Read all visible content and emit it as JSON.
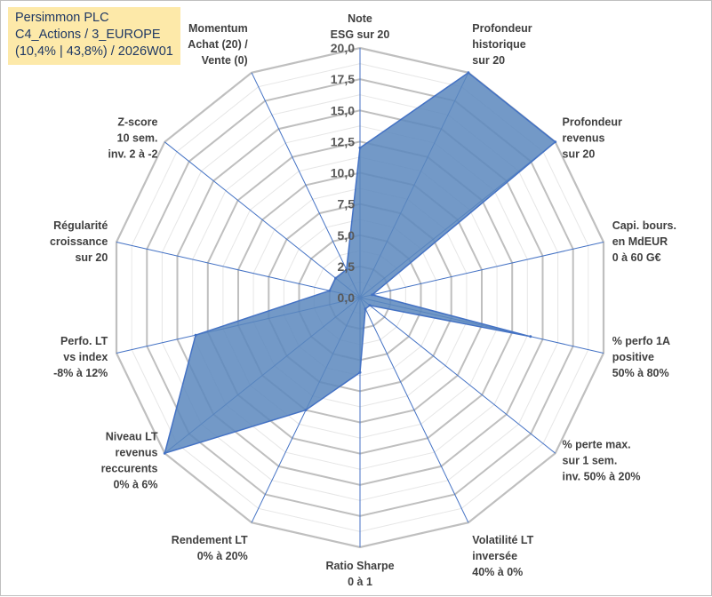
{
  "header": {
    "line1": "Persimmon PLC",
    "line2": "C4_Actions / 3_EUROPE",
    "line3": "(10,4% | 43,8%) / 2026W01"
  },
  "colors": {
    "fill": "#5b87bd",
    "stroke": "#4472c4",
    "grid": "#bfbfbf",
    "gridMinor": "#e6e6e6",
    "spoke": "#4472c4",
    "titleBg": "#fde9a9"
  },
  "chart_data": {
    "type": "radar",
    "title": "Persimmon PLC",
    "rmin": 0,
    "rmax": 20,
    "tick_step": 2.5,
    "tick_labels": [
      "0,0",
      "2,5",
      "5,0",
      "7,5",
      "10,0",
      "12,5",
      "15,0",
      "17,5",
      "20,0"
    ],
    "axes": [
      {
        "lines": [
          "Note",
          "ESG sur 20"
        ]
      },
      {
        "lines": [
          "Profondeur",
          "historique",
          "sur 20"
        ]
      },
      {
        "lines": [
          "Profondeur",
          "revenus",
          "sur 20"
        ]
      },
      {
        "lines": [
          "Capi. bours.",
          "en MdEUR",
          "0 à 60 G€"
        ]
      },
      {
        "lines": [
          "% perfo 1A",
          "positive",
          "50% à 80%"
        ]
      },
      {
        "lines": [
          "% perte max.",
          "sur 1 sem.",
          "inv. 50% à 20%"
        ]
      },
      {
        "lines": [
          "Volatilité LT",
          "inversée",
          "40% à 0%"
        ]
      },
      {
        "lines": [
          "Ratio Sharpe",
          "0 à 1"
        ]
      },
      {
        "lines": [
          "Rendement LT",
          "0% à 20%"
        ]
      },
      {
        "lines": [
          "Niveau LT",
          "revenus",
          "reccurents",
          "0% à 6%"
        ]
      },
      {
        "lines": [
          "Perfo. LT",
          "vs index",
          "-8% à 12%"
        ]
      },
      {
        "lines": [
          "Régularité",
          "croissance",
          "sur 20"
        ]
      },
      {
        "lines": [
          "Z-score",
          "10 sem.",
          "inv. 2 à -2"
        ]
      },
      {
        "lines": [
          "Momentum",
          "Achat (20) /",
          "Vente (0)"
        ]
      }
    ],
    "series": [
      {
        "name": "Persimmon PLC",
        "values": [
          12.0,
          20.0,
          20.0,
          1.0,
          14.0,
          1.0,
          1.0,
          6.0,
          10.0,
          20.0,
          13.5,
          2.5,
          2.5,
          2.5
        ]
      }
    ]
  }
}
